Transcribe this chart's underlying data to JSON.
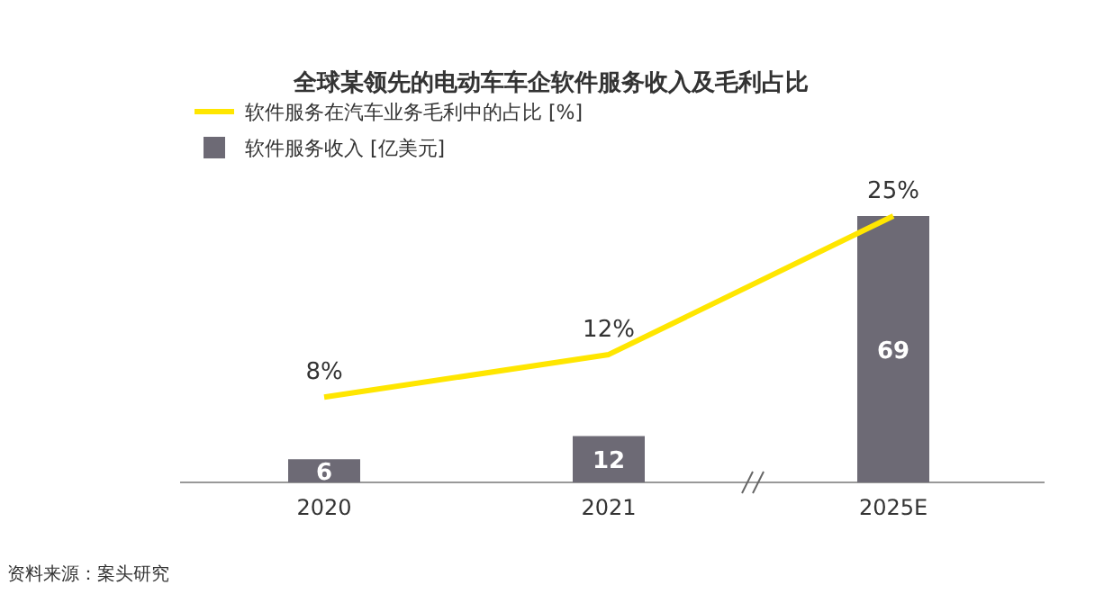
{
  "chart_data": {
    "type": "bar",
    "title": "全球某领先的电动车车企软件服务收入及毛利占比",
    "categories": [
      "2020",
      "2021",
      "2025E"
    ],
    "series": [
      {
        "name": "软件服务收入 [亿美元]",
        "color": "#6d6a75",
        "values": [
          6,
          12,
          69
        ]
      },
      {
        "name": "软件服务在汽车业务毛利中的占比 [%]",
        "type": "line",
        "axis": "y2",
        "color": "#ffe600",
        "values": [
          8,
          12,
          25
        ],
        "value_labels": [
          "8%",
          "12%",
          "25%"
        ]
      }
    ],
    "data_labels": true,
    "legend": "top left",
    "marker": "none",
    "annotations": [
      "资料来源：案头研究"
    ]
  }
}
